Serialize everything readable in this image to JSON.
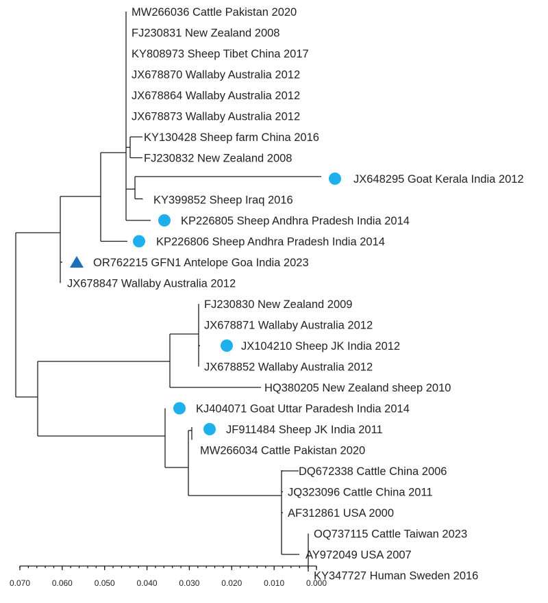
{
  "tree": {
    "leaves": [
      {
        "label": "MW266036 Cattle Pakistan 2020"
      },
      {
        "label": "FJ230831 New Zealand 2008"
      },
      {
        "label": "KY808973 Sheep Tibet China 2017"
      },
      {
        "label": "JX678870 Wallaby Australia 2012"
      },
      {
        "label": "JX678864 Wallaby Australia 2012"
      },
      {
        "label": "JX678873 Wallaby Australia 2012"
      },
      {
        "label": "KY130428 Sheep farm China 2016"
      },
      {
        "label": "FJ230832 New Zealand 2008"
      },
      {
        "label": "JX648295 Goat Kerala India 2012",
        "marker": "circle"
      },
      {
        "label": "KY399852 Sheep Iraq 2016"
      },
      {
        "label": "KP226805 Sheep Andhra Pradesh India 2014",
        "marker": "circle"
      },
      {
        "label": "KP226806 Sheep Andhra Pradesh India 2014",
        "marker": "circle"
      },
      {
        "label": "OR762215 GFN1 Antelope Goa India 2023",
        "marker": "triangle"
      },
      {
        "label": "JX678847 Wallaby Australia 2012"
      },
      {
        "label": "FJ230830 New Zealand 2009"
      },
      {
        "label": "JX678871 Wallaby Australia 2012"
      },
      {
        "label": "JX104210 Sheep JK India 2012",
        "marker": "circle"
      },
      {
        "label": "JX678852 Wallaby Australia 2012"
      },
      {
        "label": "HQ380205 New Zealand sheep 2010"
      },
      {
        "label": "KJ404071 Goat Uttar Paradesh India 2014",
        "marker": "circle"
      },
      {
        "label": "JF911484 Sheep JK India 2011",
        "marker": "circle"
      },
      {
        "label": "MW266034 Cattle Pakistan 2020"
      },
      {
        "label": "DQ672338 Cattle China 2006"
      },
      {
        "label": "JQ323096 Cattle China 2011"
      },
      {
        "label": "AF312861 USA 2000"
      },
      {
        "label": "OQ737115 Cattle Taiwan 2023"
      },
      {
        "label": "AY972049 USA 2007"
      },
      {
        "label": "KY347727 Human Sweden 2016"
      }
    ],
    "scale": {
      "ticks": [
        "0.070",
        "0.060",
        "0.050",
        "0.040",
        "0.030",
        "0.020",
        "0.010",
        "0.000"
      ]
    },
    "colors": {
      "branch": "#1a1a1a",
      "circle_marker": "#1eb0ec",
      "triangle_marker": "#1f6fb8"
    }
  }
}
